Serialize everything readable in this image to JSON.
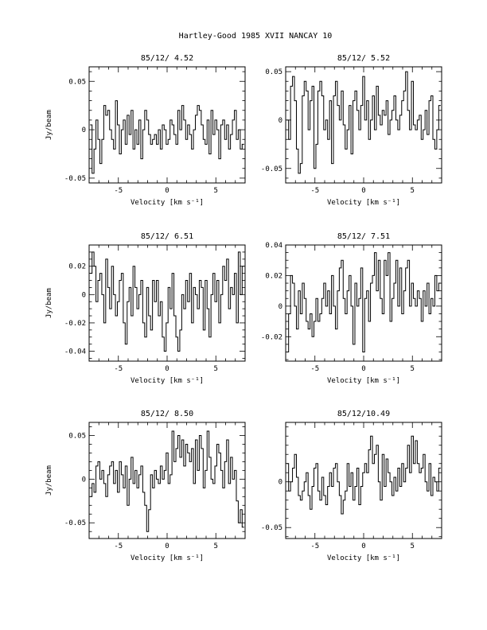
{
  "page": {
    "title": "Hartley-Good 1985 XVII   NANCAY     10"
  },
  "chart_data": [
    {
      "type": "line",
      "title": "85/12/ 4.52",
      "xlabel": "Velocity [km s⁻¹]",
      "ylabel": "Jy/beam",
      "xlim": [
        -8,
        8
      ],
      "ylim": [
        -0.055,
        0.065
      ],
      "xticks": [
        -5,
        0,
        5
      ],
      "yticks": [
        -0.05,
        0,
        0.05
      ],
      "ytick_labels": [
        "-0.05",
        "0",
        "0.05"
      ],
      "x": [
        -7.8,
        -7.6,
        -7.4,
        -7.2,
        -7.0,
        -6.8,
        -6.6,
        -6.4,
        -6.2,
        -6.0,
        -5.8,
        -5.6,
        -5.4,
        -5.2,
        -5.0,
        -4.8,
        -4.6,
        -4.4,
        -4.2,
        -4.0,
        -3.8,
        -3.6,
        -3.4,
        -3.2,
        -3.0,
        -2.8,
        -2.6,
        -2.4,
        -2.2,
        -2.0,
        -1.8,
        -1.6,
        -1.4,
        -1.2,
        -1.0,
        -0.8,
        -0.6,
        -0.4,
        -0.2,
        0.0,
        0.2,
        0.4,
        0.6,
        0.8,
        1.0,
        1.2,
        1.4,
        1.6,
        1.8,
        2.0,
        2.2,
        2.4,
        2.6,
        2.8,
        3.0,
        3.2,
        3.4,
        3.6,
        3.8,
        4.0,
        4.2,
        4.4,
        4.6,
        4.8,
        5.0,
        5.2,
        5.4,
        5.6,
        5.8,
        6.0,
        6.2,
        6.4,
        6.6,
        6.8,
        7.0,
        7.2,
        7.4,
        7.6,
        7.8
      ],
      "y": [
        0.005,
        -0.045,
        -0.02,
        0.01,
        -0.01,
        -0.035,
        -0.01,
        0.025,
        0.015,
        0.02,
        0.0,
        -0.01,
        -0.02,
        0.03,
        0.005,
        -0.025,
        0.0,
        0.01,
        -0.015,
        0.015,
        -0.005,
        0.02,
        -0.02,
        0.0,
        -0.015,
        0.01,
        -0.03,
        0.0,
        0.02,
        0.01,
        -0.005,
        -0.015,
        -0.01,
        -0.005,
        -0.015,
        0.0,
        -0.02,
        0.005,
        0.0,
        -0.015,
        -0.01,
        0.01,
        0.005,
        -0.005,
        -0.015,
        0.02,
        0.0,
        0.025,
        0.01,
        -0.01,
        0.005,
        -0.005,
        -0.02,
        0.0,
        0.015,
        0.025,
        0.02,
        0.005,
        -0.01,
        -0.015,
        0.01,
        -0.025,
        0.02,
        -0.005,
        0.01,
        0.0,
        -0.03,
        0.005,
        0.01,
        -0.01,
        0.005,
        -0.02,
        -0.005,
        0.01,
        0.02,
        -0.01,
        0.0,
        -0.02,
        -0.015
      ]
    },
    {
      "type": "line",
      "title": "85/12/ 5.52",
      "xlabel": "Velocity [km s⁻¹]",
      "ylabel": "",
      "xlim": [
        -8,
        8
      ],
      "ylim": [
        -0.065,
        0.055
      ],
      "xticks": [
        -5,
        0,
        5
      ],
      "yticks": [
        -0.05,
        0,
        0.05
      ],
      "ytick_labels": [
        "-0.05",
        "0",
        "0.05"
      ],
      "x": [
        -7.8,
        -7.6,
        -7.4,
        -7.2,
        -7.0,
        -6.8,
        -6.6,
        -6.4,
        -6.2,
        -6.0,
        -5.8,
        -5.6,
        -5.4,
        -5.2,
        -5.0,
        -4.8,
        -4.6,
        -4.4,
        -4.2,
        -4.0,
        -3.8,
        -3.6,
        -3.4,
        -3.2,
        -3.0,
        -2.8,
        -2.6,
        -2.4,
        -2.2,
        -2.0,
        -1.8,
        -1.6,
        -1.4,
        -1.2,
        -1.0,
        -0.8,
        -0.6,
        -0.4,
        -0.2,
        0.0,
        0.2,
        0.4,
        0.6,
        0.8,
        1.0,
        1.2,
        1.4,
        1.6,
        1.8,
        2.0,
        2.2,
        2.4,
        2.6,
        2.8,
        3.0,
        3.2,
        3.4,
        3.6,
        3.8,
        4.0,
        4.2,
        4.4,
        4.6,
        4.8,
        5.0,
        5.2,
        5.4,
        5.6,
        5.8,
        6.0,
        6.2,
        6.4,
        6.6,
        6.8,
        7.0,
        7.2,
        7.4,
        7.6,
        7.8
      ],
      "y": [
        0.0,
        -0.02,
        0.035,
        0.045,
        0.02,
        -0.03,
        -0.055,
        -0.045,
        0.025,
        0.04,
        0.03,
        -0.01,
        0.02,
        0.035,
        -0.05,
        -0.025,
        0.03,
        0.04,
        0.025,
        -0.01,
        0.0,
        -0.02,
        0.02,
        -0.045,
        0.025,
        0.04,
        0.015,
        0.0,
        0.03,
        -0.005,
        -0.03,
        -0.01,
        0.015,
        -0.035,
        0.02,
        0.03,
        0.01,
        -0.01,
        0.015,
        0.045,
        0.0,
        0.02,
        -0.02,
        0.0,
        0.025,
        -0.01,
        0.035,
        0.005,
        -0.005,
        0.01,
        0.005,
        0.02,
        -0.015,
        0.0,
        0.01,
        0.025,
        0.0,
        -0.01,
        0.005,
        0.02,
        0.03,
        0.05,
        0.01,
        -0.01,
        0.04,
        -0.005,
        -0.01,
        0.0,
        0.005,
        -0.02,
        -0.01,
        0.01,
        -0.015,
        0.02,
        0.025,
        -0.02,
        -0.03,
        -0.01,
        0.015
      ]
    },
    {
      "type": "line",
      "title": "85/12/ 6.51",
      "xlabel": "Velocity [km s⁻¹]",
      "ylabel": "Jy/beam",
      "xlim": [
        -8,
        8
      ],
      "ylim": [
        -0.047,
        0.035
      ],
      "xticks": [
        -5,
        0,
        5
      ],
      "yticks": [
        -0.04,
        -0.02,
        0,
        0.02
      ],
      "ytick_labels": [
        "-0.04",
        "-0.02",
        "0",
        "0.02"
      ],
      "x": [
        -7.8,
        -7.6,
        -7.4,
        -7.2,
        -7.0,
        -6.8,
        -6.6,
        -6.4,
        -6.2,
        -6.0,
        -5.8,
        -5.6,
        -5.4,
        -5.2,
        -5.0,
        -4.8,
        -4.6,
        -4.4,
        -4.2,
        -4.0,
        -3.8,
        -3.6,
        -3.4,
        -3.2,
        -3.0,
        -2.8,
        -2.6,
        -2.4,
        -2.2,
        -2.0,
        -1.8,
        -1.6,
        -1.4,
        -1.2,
        -1.0,
        -0.8,
        -0.6,
        -0.4,
        -0.2,
        0.0,
        0.2,
        0.4,
        0.6,
        0.8,
        1.0,
        1.2,
        1.4,
        1.6,
        1.8,
        2.0,
        2.2,
        2.4,
        2.6,
        2.8,
        3.0,
        3.2,
        3.4,
        3.6,
        3.8,
        4.0,
        4.2,
        4.4,
        4.6,
        4.8,
        5.0,
        5.2,
        5.4,
        5.6,
        5.8,
        6.0,
        6.2,
        6.4,
        6.6,
        6.8,
        7.0,
        7.2,
        7.4,
        7.6,
        7.8
      ],
      "y": [
        0.015,
        0.03,
        0.02,
        -0.005,
        0.01,
        0.015,
        0.0,
        -0.02,
        0.025,
        0.005,
        -0.01,
        0.02,
        0.0,
        -0.015,
        -0.005,
        0.01,
        0.015,
        -0.02,
        -0.035,
        -0.005,
        0.005,
        -0.015,
        0.02,
        0.005,
        -0.01,
        0.0,
        0.01,
        -0.02,
        -0.03,
        0.005,
        -0.015,
        -0.025,
        0.01,
        -0.005,
        0.01,
        -0.015,
        -0.005,
        -0.03,
        -0.04,
        -0.02,
        0.005,
        -0.01,
        0.015,
        -0.015,
        -0.03,
        -0.04,
        -0.025,
        0.0,
        -0.01,
        0.01,
        -0.005,
        0.015,
        -0.02,
        0.005,
        0.0,
        -0.01,
        0.01,
        0.005,
        -0.025,
        0.01,
        -0.01,
        -0.03,
        0.0,
        0.015,
        -0.005,
        0.01,
        -0.02,
        0.0,
        0.02,
        0.01,
        0.025,
        -0.01,
        0.005,
        0.0,
        0.015,
        -0.02,
        0.03,
        0.0,
        0.02
      ]
    },
    {
      "type": "line",
      "title": "85/12/ 7.51",
      "xlabel": "Velocity [km s⁻¹]",
      "ylabel": "",
      "xlim": [
        -8,
        8
      ],
      "ylim": [
        -0.036,
        0.04
      ],
      "xticks": [
        -5,
        0,
        5
      ],
      "yticks": [
        -0.02,
        0,
        0.02,
        0.04
      ],
      "ytick_labels": [
        "-0.02",
        "0",
        "0.02",
        "0.04"
      ],
      "x": [
        -7.8,
        -7.6,
        -7.4,
        -7.2,
        -7.0,
        -6.8,
        -6.6,
        -6.4,
        -6.2,
        -6.0,
        -5.8,
        -5.6,
        -5.4,
        -5.2,
        -5.0,
        -4.8,
        -4.6,
        -4.4,
        -4.2,
        -4.0,
        -3.8,
        -3.6,
        -3.4,
        -3.2,
        -3.0,
        -2.8,
        -2.6,
        -2.4,
        -2.2,
        -2.0,
        -1.8,
        -1.6,
        -1.4,
        -1.2,
        -1.0,
        -0.8,
        -0.6,
        -0.4,
        -0.2,
        0.0,
        0.2,
        0.4,
        0.6,
        0.8,
        1.0,
        1.2,
        1.4,
        1.6,
        1.8,
        2.0,
        2.2,
        2.4,
        2.6,
        2.8,
        3.0,
        3.2,
        3.4,
        3.6,
        3.8,
        4.0,
        4.2,
        4.4,
        4.6,
        4.8,
        5.0,
        5.2,
        5.4,
        5.6,
        5.8,
        6.0,
        6.2,
        6.4,
        6.6,
        6.8,
        7.0,
        7.2,
        7.4,
        7.6,
        7.8
      ],
      "y": [
        -0.03,
        -0.005,
        0.02,
        0.015,
        0.0,
        -0.015,
        0.01,
        -0.005,
        0.015,
        0.005,
        -0.01,
        -0.015,
        -0.005,
        -0.02,
        -0.01,
        0.005,
        -0.01,
        -0.005,
        0.005,
        0.015,
        0.0,
        0.01,
        -0.005,
        0.02,
        0.0,
        -0.015,
        0.01,
        0.025,
        0.03,
        0.005,
        -0.005,
        0.01,
        0.02,
        0.0,
        -0.025,
        0.015,
        0.0,
        0.005,
        0.025,
        -0.03,
        0.005,
        0.01,
        -0.01,
        0.015,
        0.02,
        0.035,
        0.01,
        0.03,
        0.005,
        -0.005,
        0.03,
        0.02,
        0.035,
        -0.01,
        0.005,
        0.015,
        0.03,
        0.0,
        0.025,
        -0.005,
        0.01,
        0.025,
        0.03,
        0.0,
        0.015,
        0.005,
        0.0,
        0.01,
        0.005,
        -0.01,
        0.01,
        0.0,
        0.015,
        -0.005,
        0.005,
        0.0,
        0.02,
        0.01,
        0.015
      ]
    },
    {
      "type": "line",
      "title": "85/12/ 8.50",
      "xlabel": "Velocity [km s⁻¹]",
      "ylabel": "Jy/beam",
      "xlim": [
        -8,
        8
      ],
      "ylim": [
        -0.068,
        0.065
      ],
      "xticks": [
        -5,
        0,
        5
      ],
      "yticks": [
        -0.05,
        0,
        0.05
      ],
      "ytick_labels": [
        "-0.05",
        "0",
        "0.05"
      ],
      "x": [
        -7.8,
        -7.6,
        -7.4,
        -7.2,
        -7.0,
        -6.8,
        -6.6,
        -6.4,
        -6.2,
        -6.0,
        -5.8,
        -5.6,
        -5.4,
        -5.2,
        -5.0,
        -4.8,
        -4.6,
        -4.4,
        -4.2,
        -4.0,
        -3.8,
        -3.6,
        -3.4,
        -3.2,
        -3.0,
        -2.8,
        -2.6,
        -2.4,
        -2.2,
        -2.0,
        -1.8,
        -1.6,
        -1.4,
        -1.2,
        -1.0,
        -0.8,
        -0.6,
        -0.4,
        -0.2,
        0.0,
        0.2,
        0.4,
        0.6,
        0.8,
        1.0,
        1.2,
        1.4,
        1.6,
        1.8,
        2.0,
        2.2,
        2.4,
        2.6,
        2.8,
        3.0,
        3.2,
        3.4,
        3.6,
        3.8,
        4.0,
        4.2,
        4.4,
        4.6,
        4.8,
        5.0,
        5.2,
        5.4,
        5.6,
        5.8,
        6.0,
        6.2,
        6.4,
        6.6,
        6.8,
        7.0,
        7.2,
        7.4,
        7.6,
        7.8
      ],
      "y": [
        -0.02,
        -0.005,
        -0.015,
        0.015,
        0.02,
        0.0,
        0.01,
        -0.005,
        -0.02,
        0.005,
        0.015,
        0.02,
        -0.005,
        0.01,
        -0.015,
        0.02,
        0.005,
        -0.01,
        0.015,
        -0.03,
        0.0,
        0.025,
        -0.005,
        0.01,
        -0.01,
        0.005,
        0.015,
        -0.015,
        -0.03,
        -0.06,
        -0.035,
        0.005,
        -0.01,
        0.01,
        0.0,
        -0.005,
        0.015,
        0.0,
        0.01,
        0.03,
        -0.005,
        0.005,
        0.055,
        0.02,
        0.035,
        0.05,
        0.025,
        0.045,
        0.015,
        0.04,
        0.03,
        0.02,
        0.035,
        -0.005,
        0.045,
        0.01,
        0.05,
        0.035,
        -0.01,
        0.01,
        0.055,
        0.025,
        0.0,
        -0.005,
        0.015,
        0.04,
        0.03,
        0.01,
        -0.01,
        0.02,
        0.045,
        -0.005,
        0.025,
        0.0,
        0.01,
        -0.025,
        -0.05,
        -0.035,
        -0.055
      ]
    },
    {
      "type": "line",
      "title": "85/12/10.49",
      "xlabel": "Velocity [km s⁻¹]",
      "ylabel": "",
      "xlim": [
        -8,
        8
      ],
      "ylim": [
        -0.062,
        0.065
      ],
      "xticks": [
        -5,
        0,
        5
      ],
      "yticks": [
        -0.05,
        0
      ],
      "ytick_labels": [
        "-0.05",
        "0"
      ],
      "x": [
        -7.8,
        -7.6,
        -7.4,
        -7.2,
        -7.0,
        -6.8,
        -6.6,
        -6.4,
        -6.2,
        -6.0,
        -5.8,
        -5.6,
        -5.4,
        -5.2,
        -5.0,
        -4.8,
        -4.6,
        -4.4,
        -4.2,
        -4.0,
        -3.8,
        -3.6,
        -3.4,
        -3.2,
        -3.0,
        -2.8,
        -2.6,
        -2.4,
        -2.2,
        -2.0,
        -1.8,
        -1.6,
        -1.4,
        -1.2,
        -1.0,
        -0.8,
        -0.6,
        -0.4,
        -0.2,
        0.0,
        0.2,
        0.4,
        0.6,
        0.8,
        1.0,
        1.2,
        1.4,
        1.6,
        1.8,
        2.0,
        2.2,
        2.4,
        2.6,
        2.8,
        3.0,
        3.2,
        3.4,
        3.6,
        3.8,
        4.0,
        4.2,
        4.4,
        4.6,
        4.8,
        5.0,
        5.2,
        5.4,
        5.6,
        5.8,
        6.0,
        6.2,
        6.4,
        6.6,
        6.8,
        7.0,
        7.2,
        7.4,
        7.6,
        7.8
      ],
      "y": [
        0.02,
        -0.01,
        0.0,
        0.015,
        0.03,
        0.005,
        -0.015,
        -0.02,
        -0.01,
        0.0,
        0.01,
        -0.015,
        -0.03,
        -0.005,
        0.015,
        0.02,
        -0.01,
        -0.02,
        0.005,
        -0.015,
        -0.025,
        -0.005,
        0.01,
        -0.005,
        0.015,
        0.02,
        0.0,
        -0.015,
        -0.035,
        -0.02,
        -0.01,
        0.02,
        -0.005,
        0.01,
        -0.02,
        -0.005,
        0.015,
        -0.025,
        -0.005,
        0.01,
        0.02,
        0.01,
        0.035,
        0.05,
        0.02,
        0.03,
        0.04,
        0.0,
        -0.02,
        0.03,
        -0.005,
        0.025,
        0.01,
        0.0,
        -0.015,
        0.005,
        -0.01,
        0.015,
        -0.005,
        0.02,
        0.0,
        0.015,
        0.04,
        0.01,
        0.05,
        0.02,
        0.045,
        0.02,
        0.01,
        0.015,
        0.03,
        0.0,
        -0.01,
        0.02,
        -0.015,
        0.005,
        0.0,
        -0.01,
        0.015
      ]
    }
  ]
}
